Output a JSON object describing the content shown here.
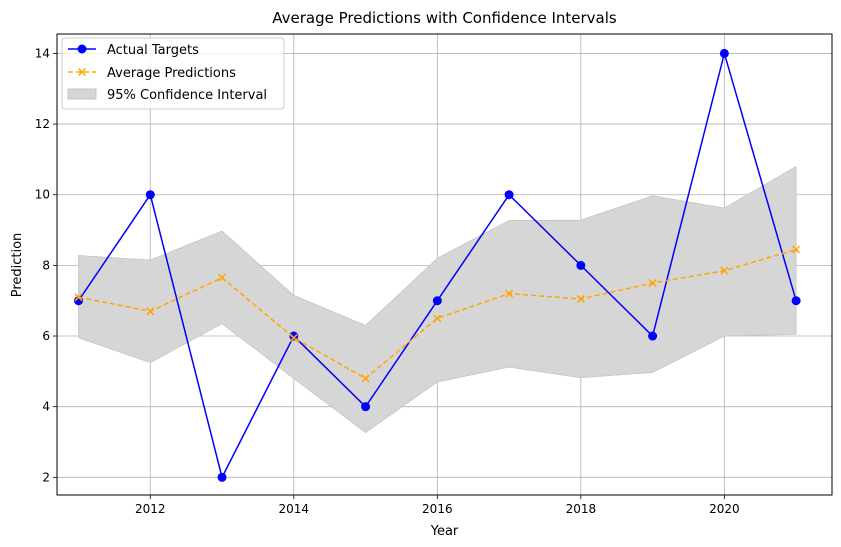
{
  "chart_data": {
    "type": "line",
    "title": "Average Predictions with Confidence Intervals",
    "xlabel": "Year",
    "ylabel": "Prediction",
    "xlim": [
      2010.7,
      2021.5
    ],
    "ylim": [
      1.5,
      14.55
    ],
    "x": [
      2011,
      2012,
      2013,
      2014,
      2015,
      2016,
      2017,
      2018,
      2019,
      2020,
      2021
    ],
    "xticks": [
      2012,
      2014,
      2016,
      2018,
      2020
    ],
    "yticks": [
      2,
      4,
      6,
      8,
      10,
      12,
      14
    ],
    "grid": true,
    "legend_position": "top-left",
    "series": [
      {
        "name": "Actual Targets",
        "kind": "line",
        "marker": "circle",
        "linestyle": "solid",
        "color": "#0000ff",
        "values": [
          7,
          10,
          2,
          6,
          4,
          7,
          10,
          8,
          6,
          14,
          7
        ]
      },
      {
        "name": "Average Predictions",
        "kind": "line",
        "marker": "x",
        "linestyle": "dashed",
        "color": "#ffa500",
        "values": [
          7.1,
          6.7,
          7.65,
          5.95,
          4.8,
          6.5,
          7.2,
          7.05,
          7.5,
          7.85,
          8.45
        ]
      },
      {
        "name": "95% Confidence Interval",
        "kind": "band",
        "color": "#d6d6d6",
        "lower": [
          5.95,
          5.25,
          6.35,
          4.8,
          3.27,
          4.7,
          5.12,
          4.82,
          4.97,
          6.0,
          6.05
        ],
        "upper": [
          8.28,
          8.15,
          8.97,
          7.15,
          6.3,
          8.2,
          9.27,
          9.28,
          9.97,
          9.62,
          10.8
        ]
      }
    ]
  }
}
